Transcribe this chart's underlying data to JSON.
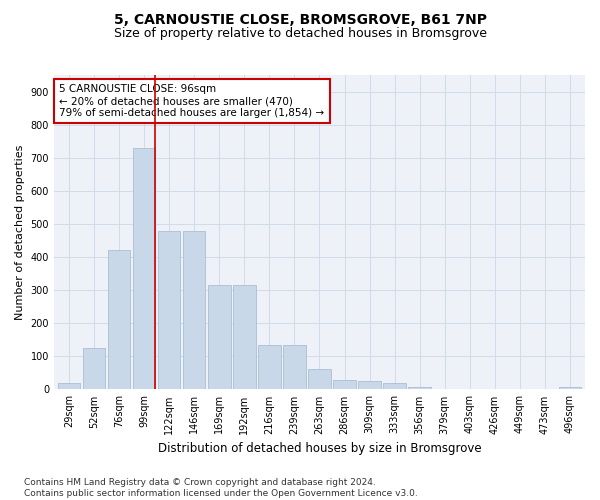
{
  "title_line1": "5, CARNOUSTIE CLOSE, BROMSGROVE, B61 7NP",
  "title_line2": "Size of property relative to detached houses in Bromsgrove",
  "xlabel": "Distribution of detached houses by size in Bromsgrove",
  "ylabel": "Number of detached properties",
  "bar_color": "#c8d8e8",
  "bar_edge_color": "#a0b8cc",
  "grid_color": "#d0dcea",
  "background_color": "#eef2f8",
  "annotation_box_color": "#cc0000",
  "vline_color": "#cc0000",
  "annotation_text": "5 CARNOUSTIE CLOSE: 96sqm\n← 20% of detached houses are smaller (470)\n79% of semi-detached houses are larger (1,854) →",
  "categories": [
    "29sqm",
    "52sqm",
    "76sqm",
    "99sqm",
    "122sqm",
    "146sqm",
    "169sqm",
    "192sqm",
    "216sqm",
    "239sqm",
    "263sqm",
    "286sqm",
    "309sqm",
    "333sqm",
    "356sqm",
    "379sqm",
    "403sqm",
    "426sqm",
    "449sqm",
    "473sqm",
    "496sqm"
  ],
  "values": [
    20,
    125,
    420,
    730,
    480,
    480,
    315,
    315,
    135,
    135,
    63,
    28,
    25,
    18,
    8,
    0,
    0,
    0,
    0,
    0,
    8
  ],
  "vline_bin_index": 3,
  "ylim": [
    0,
    950
  ],
  "yticks": [
    0,
    100,
    200,
    300,
    400,
    500,
    600,
    700,
    800,
    900
  ],
  "title_fontsize": 10,
  "subtitle_fontsize": 9,
  "tick_fontsize": 7,
  "ylabel_fontsize": 8,
  "xlabel_fontsize": 8.5,
  "footer_fontsize": 6.5,
  "footer": "Contains HM Land Registry data © Crown copyright and database right 2024.\nContains public sector information licensed under the Open Government Licence v3.0."
}
